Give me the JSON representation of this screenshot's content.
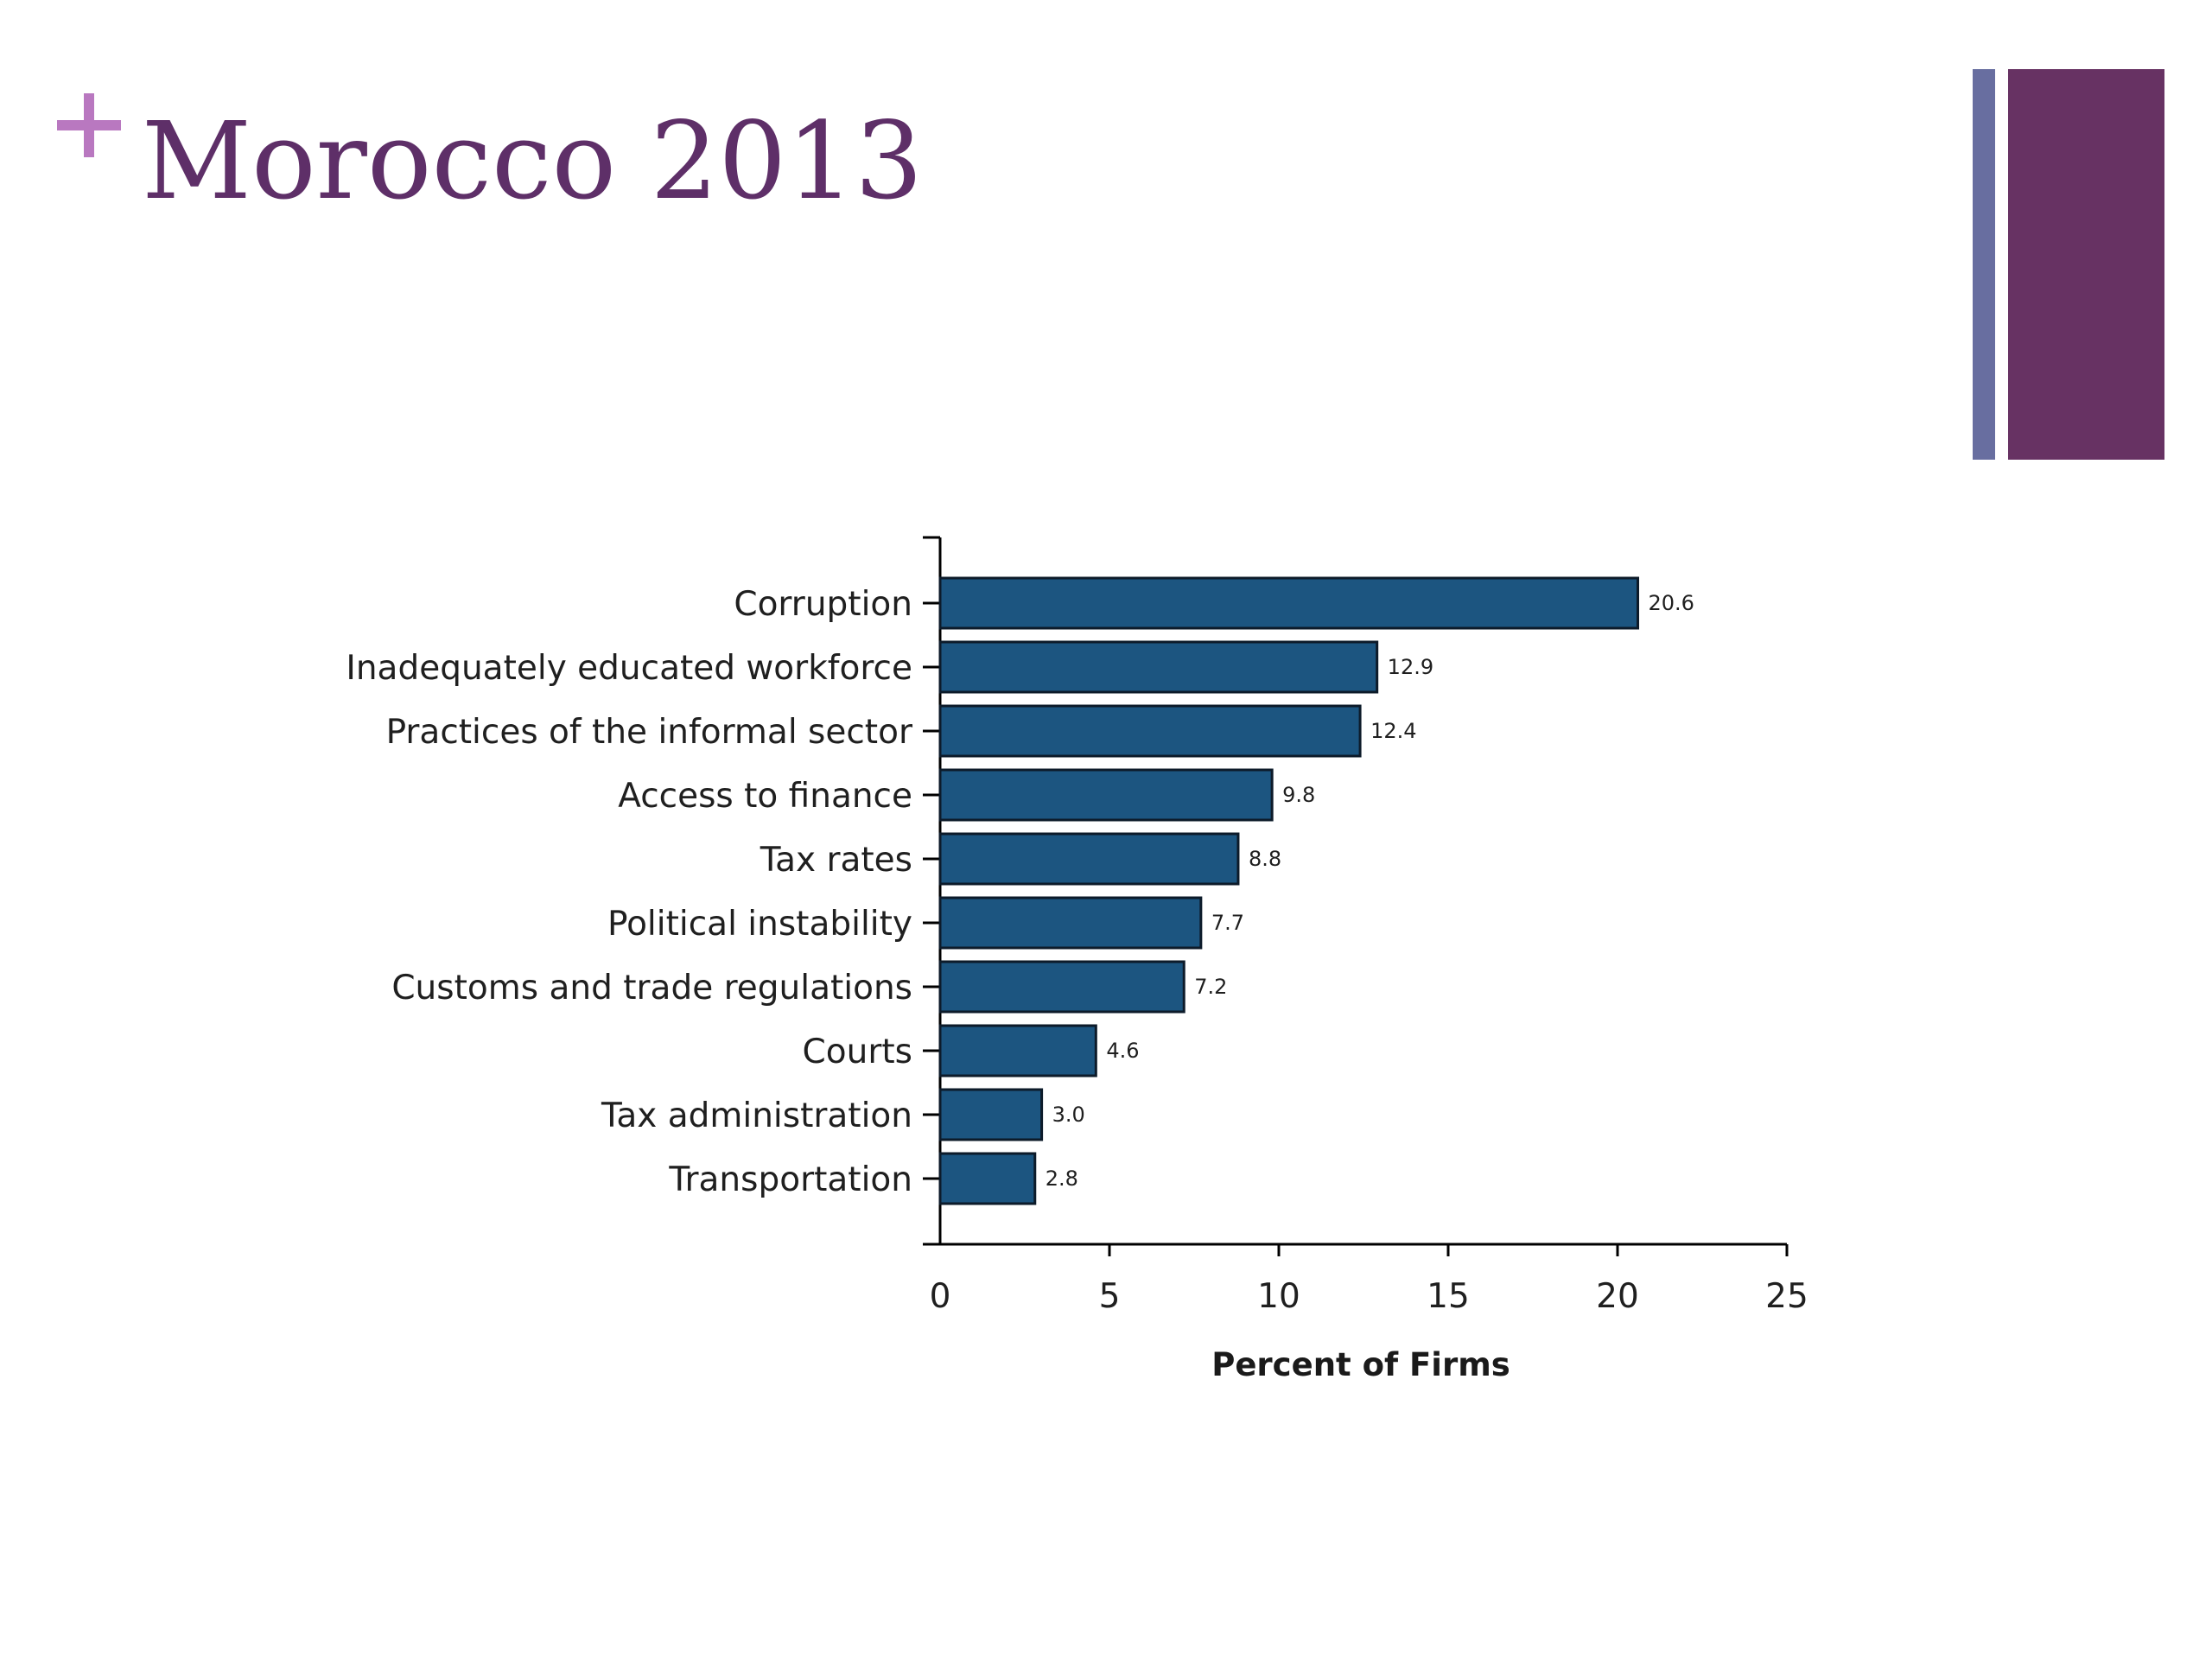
{
  "slide": {
    "title": "Morocco 2013",
    "plus_glyph": "+",
    "colors": {
      "title": "#5e2f68",
      "plus": "#b978c0",
      "accent_thin": "#686ea0",
      "accent_thick": "#673263"
    }
  },
  "chart_data": {
    "type": "bar",
    "orientation": "horizontal",
    "categories": [
      "Corruption",
      "Inadequately educated workforce",
      "Practices of the informal sector",
      "Access to finance",
      "Tax rates",
      "Political instability",
      "Customs and trade regulations",
      "Courts",
      "Tax administration",
      "Transportation"
    ],
    "values": [
      20.6,
      12.9,
      12.4,
      9.8,
      8.8,
      7.7,
      7.2,
      4.6,
      3.0,
      2.8
    ],
    "value_labels": [
      "20.6",
      "12.9",
      "12.4",
      "9.8",
      "8.8",
      "7.7",
      "7.2",
      "4.6",
      "3.0",
      "2.8"
    ],
    "xlabel": "Percent of Firms",
    "ylabel": "",
    "xlim": [
      0,
      25
    ],
    "xticks": [
      0,
      5,
      10,
      15,
      20,
      25
    ],
    "grid": false,
    "legend": "none",
    "bar_color": "#1c5580",
    "bar_edge_color": "#0d1b2a"
  }
}
